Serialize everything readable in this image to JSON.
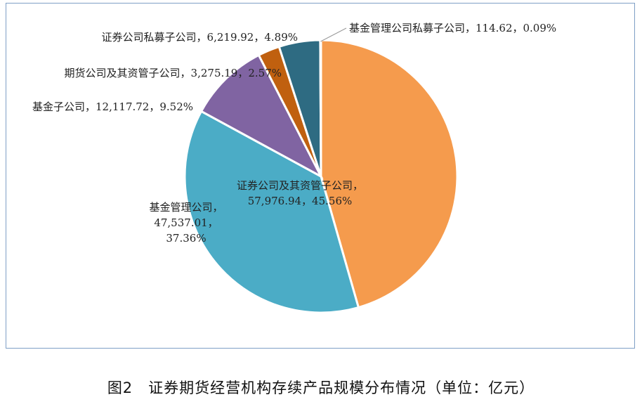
{
  "chart_data": {
    "type": "pie",
    "title": "",
    "slices": [
      {
        "name": "证券公司及其资管子公司",
        "value": 57976.94,
        "percent_label": "45.56%",
        "color": "#f59b4d",
        "label_lines": [
          "证券公司及其资管子公司，",
          "57,976.94，45.56%"
        ]
      },
      {
        "name": "基金管理公司",
        "value": 47537.01,
        "percent_label": "37.36%",
        "color": "#4bacc6",
        "label_lines": [
          "基金管理公司，",
          "47,537.01，",
          "37.36%"
        ]
      },
      {
        "name": "基金子公司",
        "value": 12117.72,
        "percent_label": "9.52%",
        "color": "#8064a2",
        "label_lines": [
          "基金子公司，12,117.72，9.52%"
        ]
      },
      {
        "name": "期货公司及其资管子公司",
        "value": 3275.19,
        "percent_label": "2.57%",
        "color": "#c0600f",
        "label_lines": [
          "期货公司及其资管子公司，3,275.19，2.57%"
        ]
      },
      {
        "name": "证券公司私募子公司",
        "value": 6219.92,
        "percent_label": "4.89%",
        "color": "#2e6b82",
        "label_lines": [
          "证券公司私募子公司，6,219.92，4.89%"
        ]
      },
      {
        "name": "基金管理公司私募子公司",
        "value": 114.62,
        "percent_label": "0.09%",
        "color": "#dddddd",
        "label_lines": [
          "基金管理公司私募子公司，114.62，0.09%"
        ]
      }
    ]
  },
  "caption": "图2　证券期货经营机构存续产品规模分布情况（单位：亿元）"
}
